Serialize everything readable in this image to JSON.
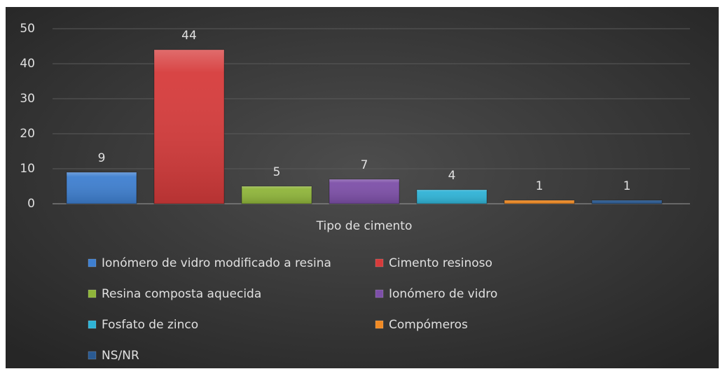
{
  "chart_data": {
    "type": "bar",
    "categories": [
      "Tipo de cimento"
    ],
    "series": [
      {
        "name": "Ionómero de vidro modificado a resina",
        "color": "#3e7fd0",
        "values": [
          9
        ]
      },
      {
        "name": "Cimento resinoso",
        "color": "#d63b3b",
        "values": [
          44
        ]
      },
      {
        "name": "Resina composta aquecida",
        "color": "#8fb53a",
        "values": [
          5
        ]
      },
      {
        "name": "Ionómero de vidro",
        "color": "#7d4fa8",
        "values": [
          7
        ]
      },
      {
        "name": "Fosfato de zinco",
        "color": "#2fb3d6",
        "values": [
          4
        ]
      },
      {
        "name": "Compómeros",
        "color": "#f08a24",
        "values": [
          1
        ]
      },
      {
        "name": "NS/NR",
        "color": "#2a5a92",
        "values": [
          1
        ]
      }
    ],
    "ylim": [
      0,
      50
    ],
    "yticks": [
      0,
      10,
      20,
      30,
      40,
      50
    ],
    "grid": true,
    "legend": "bottom"
  }
}
